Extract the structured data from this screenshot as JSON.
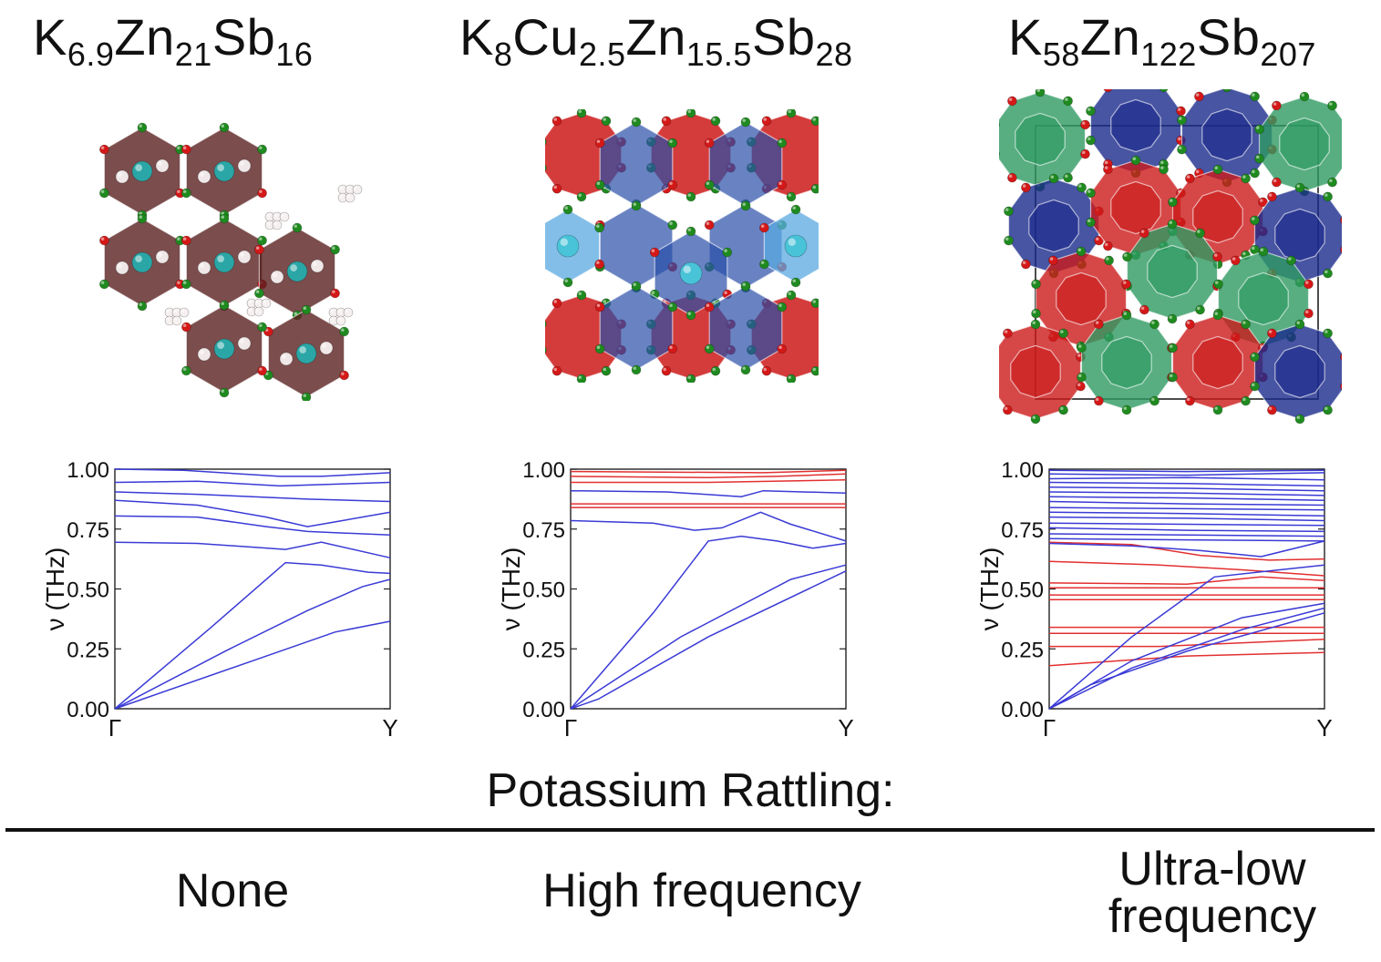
{
  "structures": [
    {
      "formula_parts": [
        {
          "text": "K"
        },
        {
          "text": "6.9",
          "sub": true
        },
        {
          "text": "Zn"
        },
        {
          "text": "21",
          "sub": true
        },
        {
          "text": "Sb"
        },
        {
          "text": "16",
          "sub": true
        }
      ],
      "rattling": "None"
    },
    {
      "formula_parts": [
        {
          "text": "K"
        },
        {
          "text": "8",
          "sub": true
        },
        {
          "text": "Cu"
        },
        {
          "text": "2.5",
          "sub": true
        },
        {
          "text": "Zn"
        },
        {
          "text": "15.5",
          "sub": true
        },
        {
          "text": "Sb"
        },
        {
          "text": "28",
          "sub": true
        }
      ],
      "rattling": "High frequency"
    },
    {
      "formula_parts": [
        {
          "text": "K"
        },
        {
          "text": "58",
          "sub": true
        },
        {
          "text": "Zn"
        },
        {
          "text": "122",
          "sub": true
        },
        {
          "text": "Sb"
        },
        {
          "text": "207",
          "sub": true
        }
      ],
      "rattling_lines": [
        "Ultra-low",
        "frequency"
      ]
    }
  ],
  "rattling_header": "Potassium Rattling:",
  "colors": {
    "acoustic_band": "#3a3ad6",
    "rattler_band": "#e23030",
    "atom_green": "#1f8a1f",
    "atom_red": "#d41818",
    "atom_teal": "#2aa6a6",
    "cage_red": "#cc1a1a",
    "cage_blue": "#2a4fa8",
    "cage_navy": "#1a2a8c",
    "cage_green": "#2e9a62",
    "cage_brown": "#5a2020"
  },
  "plots": [
    {
      "y_ticks": [
        "0.00",
        "0.25",
        "0.50",
        "0.75",
        "1.00"
      ],
      "x_ticks": [
        "Γ",
        "Y"
      ],
      "ylabel": "ν (THz)"
    },
    {
      "y_ticks": [
        "0.00",
        "0.25",
        "0.50",
        "0.75",
        "1.00"
      ],
      "x_ticks": [
        "Γ",
        "Y"
      ],
      "ylabel": "ν (THz)"
    },
    {
      "y_ticks": [
        "0.00",
        "0.25",
        "0.50",
        "0.75",
        "1.00"
      ],
      "x_ticks": [
        "Γ",
        "Y"
      ],
      "ylabel": "ν (THz)"
    }
  ],
  "chart_data": [
    {
      "type": "line",
      "xlabel": "",
      "ylabel": "ν (THz)",
      "x_ticks": [
        "Γ",
        "Y"
      ],
      "xlim": [
        0,
        1
      ],
      "ylim": [
        0,
        1
      ],
      "series": [
        {
          "color": "blue",
          "x": [
            0,
            0.25,
            0.6,
            0.75,
            1
          ],
          "y": [
            1.0,
            0.995,
            0.97,
            0.97,
            0.985
          ]
        },
        {
          "color": "blue",
          "x": [
            0,
            0.3,
            0.6,
            1
          ],
          "y": [
            0.945,
            0.95,
            0.93,
            0.945
          ]
        },
        {
          "color": "blue",
          "x": [
            0,
            0.3,
            0.7,
            1
          ],
          "y": [
            0.905,
            0.895,
            0.875,
            0.865
          ]
        },
        {
          "color": "blue",
          "x": [
            0,
            0.3,
            0.55,
            0.7,
            0.8,
            1
          ],
          "y": [
            0.87,
            0.85,
            0.8,
            0.76,
            0.78,
            0.82
          ]
        },
        {
          "color": "blue",
          "x": [
            0,
            0.3,
            0.55,
            0.7,
            1
          ],
          "y": [
            0.805,
            0.8,
            0.76,
            0.74,
            0.725
          ]
        },
        {
          "color": "blue",
          "x": [
            0,
            0.3,
            0.62,
            0.75,
            1
          ],
          "y": [
            0.695,
            0.69,
            0.665,
            0.695,
            0.63
          ]
        },
        {
          "color": "blue",
          "x": [
            0,
            0.35,
            0.62,
            0.75,
            0.92,
            1
          ],
          "y": [
            0.0,
            0.34,
            0.61,
            0.6,
            0.57,
            0.565
          ]
        },
        {
          "color": "blue",
          "x": [
            0,
            0.4,
            0.7,
            0.9,
            1
          ],
          "y": [
            0.0,
            0.24,
            0.41,
            0.51,
            0.54
          ]
        },
        {
          "color": "blue",
          "x": [
            0,
            0.1,
            0.5,
            0.8,
            1
          ],
          "y": [
            0.0,
            0.04,
            0.2,
            0.32,
            0.365
          ]
        }
      ]
    },
    {
      "type": "line",
      "xlabel": "",
      "ylabel": "ν (THz)",
      "x_ticks": [
        "Γ",
        "Y"
      ],
      "xlim": [
        0,
        1
      ],
      "ylim": [
        0,
        1
      ],
      "series": [
        {
          "color": "red",
          "x": [
            0,
            0.7,
            1
          ],
          "y": [
            0.99,
            0.985,
            0.995
          ]
        },
        {
          "color": "red",
          "x": [
            0,
            0.5,
            0.75,
            1
          ],
          "y": [
            0.97,
            0.965,
            0.97,
            0.98
          ]
        },
        {
          "color": "red",
          "x": [
            0,
            0.5,
            1
          ],
          "y": [
            0.945,
            0.945,
            0.955
          ]
        },
        {
          "color": "blue",
          "x": [
            0,
            0.35,
            0.62,
            0.7,
            1
          ],
          "y": [
            0.91,
            0.905,
            0.885,
            0.91,
            0.9
          ]
        },
        {
          "color": "red",
          "x": [
            0,
            0.5,
            1
          ],
          "y": [
            0.855,
            0.855,
            0.855
          ]
        },
        {
          "color": "red",
          "x": [
            0,
            0.5,
            1
          ],
          "y": [
            0.84,
            0.84,
            0.84
          ]
        },
        {
          "color": "blue",
          "x": [
            0,
            0.3,
            0.45,
            0.55,
            0.69,
            0.8,
            1
          ],
          "y": [
            0.785,
            0.775,
            0.745,
            0.755,
            0.82,
            0.77,
            0.7
          ]
        },
        {
          "color": "blue",
          "x": [
            0,
            0.3,
            0.5,
            0.62,
            0.75,
            0.88,
            1
          ],
          "y": [
            0.0,
            0.4,
            0.7,
            0.72,
            0.7,
            0.67,
            0.69
          ]
        },
        {
          "color": "blue",
          "x": [
            0,
            0.4,
            0.8,
            1
          ],
          "y": [
            0.0,
            0.3,
            0.54,
            0.6
          ]
        },
        {
          "color": "blue",
          "x": [
            0,
            0.1,
            0.5,
            1
          ],
          "y": [
            0.0,
            0.04,
            0.3,
            0.575
          ]
        }
      ]
    },
    {
      "type": "line",
      "xlabel": "",
      "ylabel": "ν (THz)",
      "x_ticks": [
        "Γ",
        "Y"
      ],
      "xlim": [
        0,
        1
      ],
      "ylim": [
        0,
        1
      ],
      "series": [
        {
          "color": "blue",
          "x": [
            0,
            0.5,
            1
          ],
          "y": [
            0.995,
            0.99,
            0.995
          ]
        },
        {
          "color": "blue",
          "x": [
            0,
            0.5,
            1
          ],
          "y": [
            0.98,
            0.975,
            0.985
          ]
        },
        {
          "color": "blue",
          "x": [
            0,
            0.5,
            1
          ],
          "y": [
            0.96,
            0.965,
            0.955
          ]
        },
        {
          "color": "blue",
          "x": [
            0,
            0.5,
            1
          ],
          "y": [
            0.945,
            0.94,
            0.93
          ]
        },
        {
          "color": "blue",
          "x": [
            0,
            0.5,
            1
          ],
          "y": [
            0.925,
            0.92,
            0.91
          ]
        },
        {
          "color": "blue",
          "x": [
            0,
            0.5,
            1
          ],
          "y": [
            0.905,
            0.9,
            0.89
          ]
        },
        {
          "color": "blue",
          "x": [
            0,
            0.5,
            1
          ],
          "y": [
            0.885,
            0.88,
            0.87
          ]
        },
        {
          "color": "blue",
          "x": [
            0,
            0.5,
            1
          ],
          "y": [
            0.865,
            0.855,
            0.85
          ]
        },
        {
          "color": "blue",
          "x": [
            0,
            0.5,
            1
          ],
          "y": [
            0.84,
            0.835,
            0.83
          ]
        },
        {
          "color": "blue",
          "x": [
            0,
            0.5,
            1
          ],
          "y": [
            0.82,
            0.815,
            0.805
          ]
        },
        {
          "color": "blue",
          "x": [
            0,
            0.5,
            1
          ],
          "y": [
            0.8,
            0.795,
            0.785
          ]
        },
        {
          "color": "blue",
          "x": [
            0,
            0.5,
            1
          ],
          "y": [
            0.775,
            0.77,
            0.765
          ]
        },
        {
          "color": "blue",
          "x": [
            0,
            0.5,
            1
          ],
          "y": [
            0.755,
            0.745,
            0.74
          ]
        },
        {
          "color": "blue",
          "x": [
            0,
            0.5,
            1
          ],
          "y": [
            0.73,
            0.725,
            0.72
          ]
        },
        {
          "color": "blue",
          "x": [
            0,
            0.5,
            1
          ],
          "y": [
            0.71,
            0.705,
            0.7
          ]
        },
        {
          "color": "red",
          "x": [
            0,
            0.3,
            0.55,
            0.8,
            1
          ],
          "y": [
            0.695,
            0.685,
            0.64,
            0.62,
            0.625
          ]
        },
        {
          "color": "blue",
          "x": [
            0,
            0.3,
            0.55,
            0.77,
            1
          ],
          "y": [
            0.69,
            0.68,
            0.66,
            0.635,
            0.7
          ]
        },
        {
          "color": "red",
          "x": [
            0,
            0.4,
            0.7,
            1
          ],
          "y": [
            0.615,
            0.6,
            0.58,
            0.555
          ]
        },
        {
          "color": "red",
          "x": [
            0,
            0.5,
            0.77,
            1
          ],
          "y": [
            0.525,
            0.52,
            0.55,
            0.535
          ]
        },
        {
          "color": "red",
          "x": [
            0,
            0.5,
            1
          ],
          "y": [
            0.505,
            0.505,
            0.505
          ]
        },
        {
          "color": "red",
          "x": [
            0,
            0.5,
            1
          ],
          "y": [
            0.475,
            0.475,
            0.475
          ]
        },
        {
          "color": "red",
          "x": [
            0,
            0.5,
            1
          ],
          "y": [
            0.455,
            0.455,
            0.455
          ]
        },
        {
          "color": "red",
          "x": [
            0,
            0.5,
            1
          ],
          "y": [
            0.34,
            0.34,
            0.34
          ]
        },
        {
          "color": "red",
          "x": [
            0,
            0.5,
            1
          ],
          "y": [
            0.315,
            0.315,
            0.315
          ]
        },
        {
          "color": "red",
          "x": [
            0,
            0.4,
            1
          ],
          "y": [
            0.26,
            0.26,
            0.29
          ]
        },
        {
          "color": "red",
          "x": [
            0,
            0.5,
            1
          ],
          "y": [
            0.18,
            0.22,
            0.235
          ]
        },
        {
          "color": "blue",
          "x": [
            0,
            0.3,
            0.6,
            1
          ],
          "y": [
            0.0,
            0.3,
            0.55,
            0.6
          ]
        },
        {
          "color": "blue",
          "x": [
            0,
            0.3,
            0.7,
            1
          ],
          "y": [
            0.0,
            0.2,
            0.38,
            0.44
          ]
        },
        {
          "color": "blue",
          "x": [
            0,
            0.3,
            0.7,
            1
          ],
          "y": [
            0.0,
            0.17,
            0.33,
            0.42
          ]
        },
        {
          "color": "blue",
          "x": [
            0,
            0.15,
            0.5,
            1
          ],
          "y": [
            0.0,
            0.1,
            0.24,
            0.4
          ]
        }
      ]
    }
  ]
}
